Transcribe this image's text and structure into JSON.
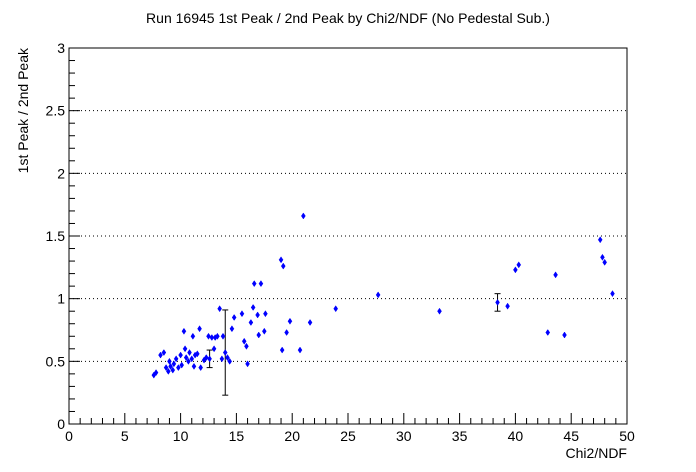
{
  "chart_data": {
    "type": "scatter",
    "title": "Run 16945 1st Peak / 2nd Peak by Chi2/NDF (No Pedestal Sub.)",
    "xlabel": "Chi2/NDF",
    "ylabel": "1st Peak / 2nd Peak",
    "xlim": [
      0,
      50
    ],
    "ylim": [
      0,
      3
    ],
    "x_ticks": [
      "0",
      "5",
      "10",
      "15",
      "20",
      "25",
      "30",
      "35",
      "40",
      "45",
      "50"
    ],
    "y_ticks": [
      "0",
      "0.5",
      "1",
      "1.5",
      "2",
      "2.5",
      "3"
    ],
    "grid": "horizontal dotted",
    "marker_color": "#0000ff",
    "error_bar_color": "#000000",
    "points": [
      {
        "x": 7.6,
        "y": 0.39
      },
      {
        "x": 7.8,
        "y": 0.41
      },
      {
        "x": 8.2,
        "y": 0.55
      },
      {
        "x": 8.5,
        "y": 0.57
      },
      {
        "x": 8.7,
        "y": 0.45
      },
      {
        "x": 8.9,
        "y": 0.42
      },
      {
        "x": 9.0,
        "y": 0.5
      },
      {
        "x": 9.1,
        "y": 0.46
      },
      {
        "x": 9.3,
        "y": 0.43
      },
      {
        "x": 9.4,
        "y": 0.48
      },
      {
        "x": 9.6,
        "y": 0.52
      },
      {
        "x": 9.8,
        "y": 0.45
      },
      {
        "x": 10.0,
        "y": 0.55
      },
      {
        "x": 10.1,
        "y": 0.47
      },
      {
        "x": 10.3,
        "y": 0.74
      },
      {
        "x": 10.4,
        "y": 0.6
      },
      {
        "x": 10.5,
        "y": 0.53
      },
      {
        "x": 10.7,
        "y": 0.5
      },
      {
        "x": 10.8,
        "y": 0.57
      },
      {
        "x": 11.0,
        "y": 0.52
      },
      {
        "x": 11.1,
        "y": 0.7
      },
      {
        "x": 11.2,
        "y": 0.46
      },
      {
        "x": 11.3,
        "y": 0.55
      },
      {
        "x": 11.5,
        "y": 0.56
      },
      {
        "x": 11.7,
        "y": 0.76
      },
      {
        "x": 11.8,
        "y": 0.45
      },
      {
        "x": 12.1,
        "y": 0.51
      },
      {
        "x": 12.3,
        "y": 0.53
      },
      {
        "x": 12.5,
        "y": 0.7
      },
      {
        "x": 12.6,
        "y": 0.52,
        "err": 0.07
      },
      {
        "x": 12.8,
        "y": 0.69
      },
      {
        "x": 13.0,
        "y": 0.6
      },
      {
        "x": 13.1,
        "y": 0.69
      },
      {
        "x": 13.3,
        "y": 0.7
      },
      {
        "x": 13.5,
        "y": 0.92
      },
      {
        "x": 13.7,
        "y": 0.52
      },
      {
        "x": 13.8,
        "y": 0.7
      },
      {
        "x": 14.0,
        "y": 0.57,
        "err": 0.34
      },
      {
        "x": 14.2,
        "y": 0.53
      },
      {
        "x": 14.4,
        "y": 0.5
      },
      {
        "x": 14.6,
        "y": 0.76
      },
      {
        "x": 14.8,
        "y": 0.85
      },
      {
        "x": 15.5,
        "y": 0.88
      },
      {
        "x": 15.7,
        "y": 0.66
      },
      {
        "x": 15.9,
        "y": 0.62
      },
      {
        "x": 16.0,
        "y": 0.48
      },
      {
        "x": 16.3,
        "y": 0.81
      },
      {
        "x": 16.5,
        "y": 0.93
      },
      {
        "x": 16.6,
        "y": 1.12
      },
      {
        "x": 16.9,
        "y": 0.87
      },
      {
        "x": 17.0,
        "y": 0.71
      },
      {
        "x": 17.2,
        "y": 1.12
      },
      {
        "x": 17.5,
        "y": 0.74
      },
      {
        "x": 17.6,
        "y": 0.88
      },
      {
        "x": 19.0,
        "y": 1.31
      },
      {
        "x": 19.1,
        "y": 0.59
      },
      {
        "x": 19.2,
        "y": 1.26
      },
      {
        "x": 19.5,
        "y": 0.73
      },
      {
        "x": 19.8,
        "y": 0.82
      },
      {
        "x": 20.7,
        "y": 0.59
      },
      {
        "x": 21.0,
        "y": 1.66
      },
      {
        "x": 21.6,
        "y": 0.81
      },
      {
        "x": 23.9,
        "y": 0.92
      },
      {
        "x": 27.7,
        "y": 1.03
      },
      {
        "x": 33.2,
        "y": 0.9
      },
      {
        "x": 38.4,
        "y": 0.97,
        "err": 0.07
      },
      {
        "x": 39.3,
        "y": 0.94
      },
      {
        "x": 40.0,
        "y": 1.23
      },
      {
        "x": 40.3,
        "y": 1.27
      },
      {
        "x": 42.9,
        "y": 0.73
      },
      {
        "x": 43.6,
        "y": 1.19
      },
      {
        "x": 44.4,
        "y": 0.71
      },
      {
        "x": 47.6,
        "y": 1.47
      },
      {
        "x": 47.8,
        "y": 1.33
      },
      {
        "x": 48.0,
        "y": 1.29
      },
      {
        "x": 48.7,
        "y": 1.04
      }
    ]
  }
}
